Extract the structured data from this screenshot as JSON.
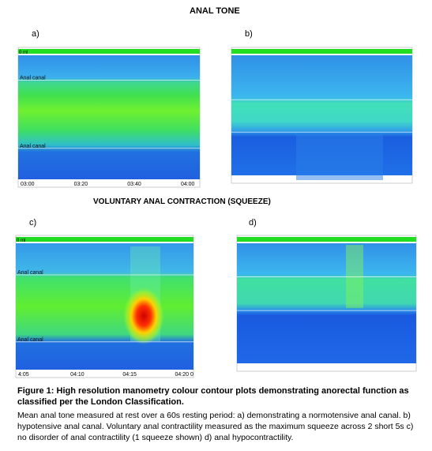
{
  "title": "ANAL TONE",
  "section2": "VOLUNTARY ANAL CONTRACTION (SQUEEZE)",
  "panels": [
    {
      "label": "a)",
      "top_label": "0 ml",
      "markers": [
        "Anal canal",
        "Anal canal"
      ],
      "ticks": [
        "03:00",
        "03:20",
        "03:40",
        "04:00"
      ]
    },
    {
      "label": "b)"
    },
    {
      "label": "c)",
      "top_label": "0 ml",
      "markers": [
        "Anal canal",
        "Anal canal"
      ],
      "ticks": [
        "4:05",
        "04:10",
        "04:15",
        "04:20 0"
      ]
    },
    {
      "label": "d)"
    }
  ],
  "caption": {
    "title": "Figure 1: High resolution manometry colour contour plots demonstrating anorectal function as classified per the London Classification.",
    "body": "Mean anal tone measured at rest over a 60s resting period: a) demonstrating a normotensive anal canal. b) hypotensive anal canal. Voluntary anal contractility measured as the maximum squeeze across 2 short 5s c) no disorder of anal contractility (1 squeeze shown) d) anal hypocontractility."
  }
}
